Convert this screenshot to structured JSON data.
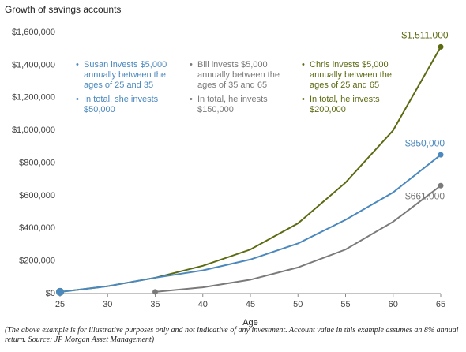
{
  "chart_data": {
    "type": "line",
    "title": "Growth of savings accounts",
    "x_label": "Age",
    "x": [
      25,
      30,
      35,
      40,
      45,
      50,
      55,
      60,
      65
    ],
    "xlim": [
      25,
      65
    ],
    "xticks": [
      25,
      30,
      35,
      40,
      45,
      50,
      55,
      60,
      65
    ],
    "ylim": [
      0,
      1600000
    ],
    "yticks": [
      {
        "value": 0,
        "label": "$0"
      },
      {
        "value": 200000,
        "label": "$200,000"
      },
      {
        "value": 400000,
        "label": "$400,000"
      },
      {
        "value": 600000,
        "label": "$600,000"
      },
      {
        "value": 800000,
        "label": "$800,000"
      },
      {
        "value": 1000000,
        "label": "$1,000,000"
      },
      {
        "value": 1200000,
        "label": "$1,200,000"
      },
      {
        "value": 1400000,
        "label": "$1,400,000"
      },
      {
        "value": 1600000,
        "label": "$1,600,000"
      }
    ],
    "grid": false,
    "series": [
      {
        "name": "Chris",
        "color": "#5b6b12",
        "values": [
          10000,
          45000,
          97000,
          170000,
          270000,
          430000,
          680000,
          1000000,
          1511000
        ],
        "value_labels": [
          null,
          null,
          null,
          null,
          null,
          null,
          null,
          null,
          "$1,511,000"
        ],
        "notes": [
          "Chris invests $5,000 annually between the ages of 25 and 65",
          "In total, he invests $200,000"
        ]
      },
      {
        "name": "Susan",
        "color": "#4a88be",
        "values": [
          10000,
          45000,
          97000,
          142000,
          209000,
          307000,
          452000,
          620000,
          850000
        ],
        "value_labels": [
          null,
          null,
          null,
          null,
          null,
          null,
          null,
          null,
          "$850,000"
        ],
        "notes": [
          "Susan invests $5,000 annually between the ages of 25 and 35",
          "In total, she invests $50,000"
        ]
      },
      {
        "name": "Bill",
        "color": "#7a7a7a",
        "values": [
          null,
          null,
          10000,
          38000,
          85000,
          160000,
          270000,
          440000,
          661000
        ],
        "value_labels": [
          null,
          null,
          null,
          null,
          null,
          null,
          null,
          null,
          "$661,000"
        ],
        "notes": [
          "Bill invests $5,000 annually between the ages of 35 and 65",
          "In total, he invests $150,000"
        ]
      }
    ],
    "footnote": "(The above example is for illustrative purposes only and not indicative of any investment. Account value in this example assumes an 8% annual return. Source: JP Morgan Asset Management)"
  }
}
